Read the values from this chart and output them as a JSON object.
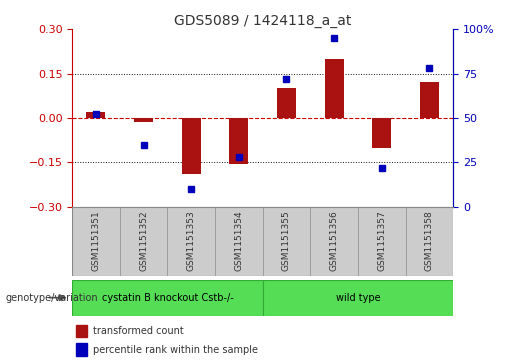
{
  "title": "GDS5089 / 1424118_a_at",
  "samples": [
    "GSM1151351",
    "GSM1151352",
    "GSM1151353",
    "GSM1151354",
    "GSM1151355",
    "GSM1151356",
    "GSM1151357",
    "GSM1151358"
  ],
  "transformed_count": [
    0.02,
    -0.015,
    -0.19,
    -0.155,
    0.1,
    0.2,
    -0.1,
    0.12
  ],
  "percentile_rank": [
    52,
    35,
    10,
    28,
    72,
    95,
    22,
    78
  ],
  "ylim": [
    -0.3,
    0.3
  ],
  "yticks_left": [
    -0.3,
    -0.15,
    0.0,
    0.15,
    0.3
  ],
  "yticks_right": [
    0,
    25,
    50,
    75,
    100
  ],
  "bar_color": "#AA1111",
  "dot_color": "#0000BB",
  "zero_line_color": "#CC0000",
  "dotted_color": "#111111",
  "group1_label": "cystatin B knockout Cstb-/-",
  "group2_label": "wild type",
  "group1_count": 4,
  "group2_count": 4,
  "group_color": "#55DD55",
  "group_edge_color": "#33AA33",
  "annotation_label": "genotype/variation",
  "legend1": "transformed count",
  "legend2": "percentile rank within the sample",
  "background_color": "#FFFFFF",
  "plot_bg": "#FFFFFF",
  "sample_box_color": "#CCCCCC",
  "sample_box_edge": "#999999",
  "title_fontsize": 10,
  "axis_fontsize": 8,
  "label_fontsize": 7,
  "sample_fontsize": 6.5
}
